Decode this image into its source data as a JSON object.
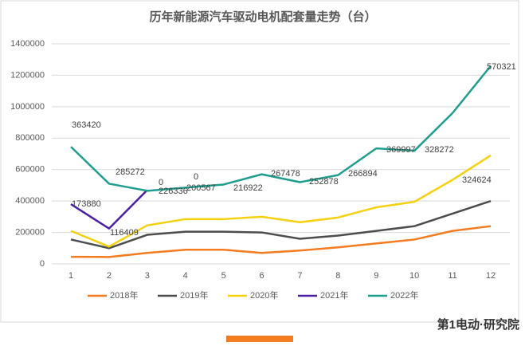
{
  "chart_data": {
    "type": "line",
    "title": "历年新能源汽车驱动电机配套量走势（台）",
    "categories": [
      "1",
      "2",
      "3",
      "4",
      "5",
      "6",
      "7",
      "8",
      "9",
      "10",
      "11",
      "12"
    ],
    "series": [
      {
        "name": "2018年",
        "color": "#f47c20",
        "values": [
          45000,
          44000,
          70000,
          90000,
          90000,
          70000,
          85000,
          105000,
          130000,
          155000,
          210000,
          240000
        ]
      },
      {
        "name": "2019年",
        "color": "#4d4d4d",
        "values": [
          155000,
          100000,
          185000,
          205000,
          205000,
          200000,
          160000,
          180000,
          210000,
          240000,
          320000,
          400000
        ]
      },
      {
        "name": "2020年",
        "color": "#f5d10f",
        "values": [
          210000,
          110000,
          245000,
          285000,
          285000,
          300000,
          265000,
          295000,
          360000,
          395000,
          535000,
          690000
        ]
      },
      {
        "name": "2021年",
        "color": "#4b1fa1",
        "values": [
          380000,
          225000,
          470000,
          null,
          null,
          null,
          null,
          null,
          null,
          null,
          null,
          null
        ]
      },
      {
        "name": "2022年",
        "color": "#1f9e8f",
        "values": [
          745000,
          510000,
          465000,
          485000,
          505000,
          570000,
          520000,
          565000,
          735000,
          720000,
          960000,
          1260000
        ]
      }
    ],
    "ylim": [
      0,
      1400000
    ],
    "yticks": [
      0,
      200000,
      400000,
      600000,
      800000,
      1000000,
      1200000,
      1400000
    ],
    "grid": true,
    "legend": "bottom",
    "annotations": [
      "363420",
      "285272",
      "173880",
      "116409",
      "0",
      "226336",
      "0",
      "200567",
      "216922",
      "267478",
      "252878",
      "266894",
      "369997",
      "328272",
      "324624",
      "570321"
    ],
    "logo": "第1电动·研究院"
  }
}
